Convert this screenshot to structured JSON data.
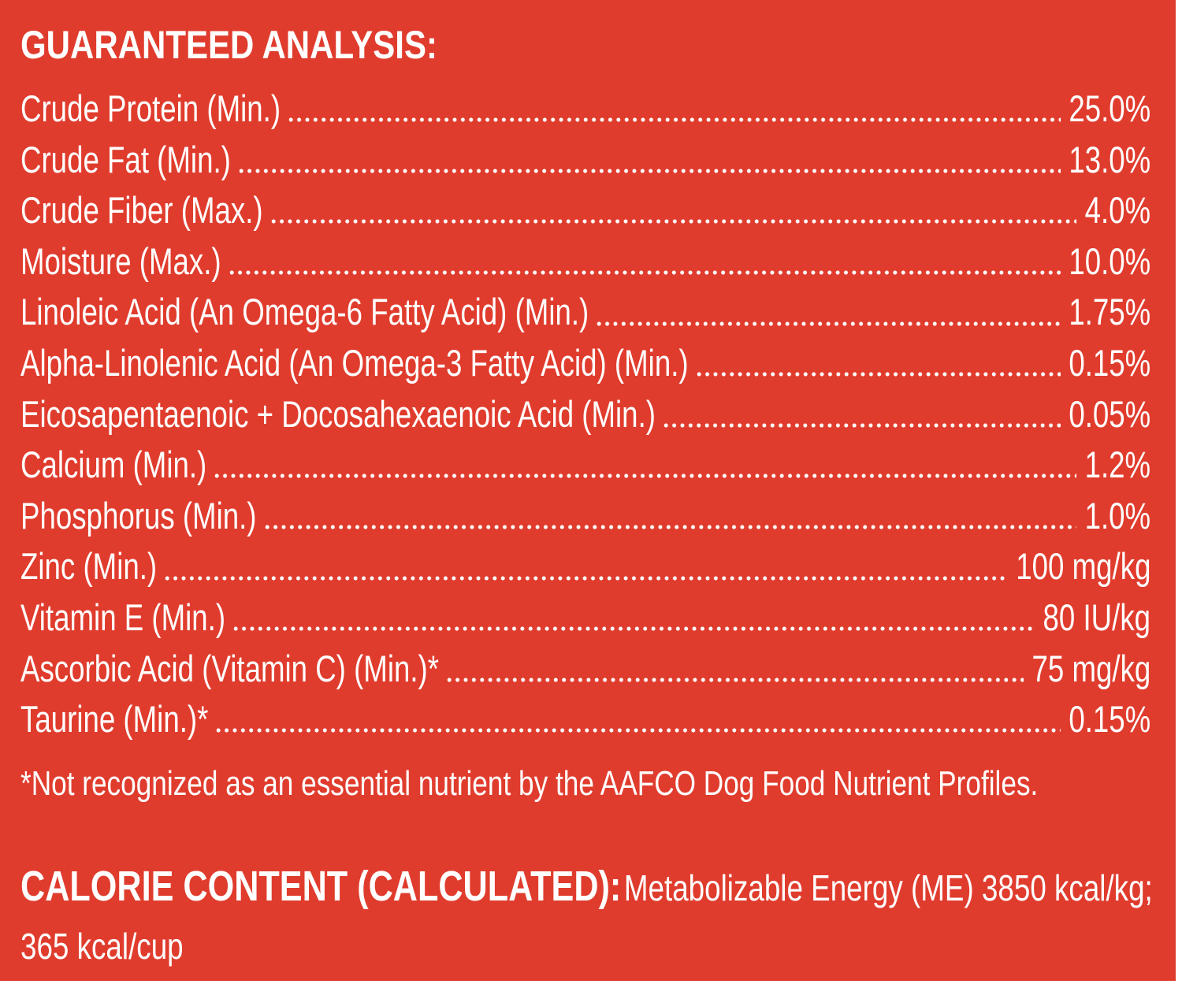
{
  "heading": "GUARANTEED ANALYSIS:",
  "rows": [
    {
      "label": "Crude Protein (Min.)",
      "value": "25.0%"
    },
    {
      "label": "Crude Fat (Min.)",
      "value": "13.0%"
    },
    {
      "label": "Crude Fiber (Max.)",
      "value": "4.0%"
    },
    {
      "label": "Moisture  (Max.)",
      "value": "10.0%"
    },
    {
      "label": "Linoleic Acid (An Omega-6 Fatty Acid) (Min.)",
      "value": "1.75%"
    },
    {
      "label": "Alpha-Linolenic Acid (An Omega-3 Fatty Acid) (Min.)",
      "value": "0.15%"
    },
    {
      "label": "Eicosapentaenoic + Docosahexaenoic Acid (Min.)",
      "value": "0.05%"
    },
    {
      "label": "Calcium (Min.)",
      "value": "1.2%"
    },
    {
      "label": "Phosphorus (Min.)",
      "value": "1.0%"
    },
    {
      "label": "Zinc (Min.)",
      "value": "100 mg/kg"
    },
    {
      "label": "Vitamin E (Min.)",
      "value": "80 IU/kg"
    },
    {
      "label": "Ascorbic Acid (Vitamin C) (Min.)*",
      "value": "75 mg/kg"
    },
    {
      "label": "Taurine (Min.)*",
      "value": "0.15%"
    }
  ],
  "footnote": "*Not recognized as an essential nutrient by the AAFCO Dog Food Nutrient Profiles.",
  "calorie": {
    "heading": "CALORIE CONTENT (CALCULATED):",
    "text": "Metabolizable Energy (ME) 3850 kcal/kg;",
    "line2": "365 kcal/cup"
  },
  "colors": {
    "background": "#e03c2d",
    "text": "#ffffff"
  }
}
